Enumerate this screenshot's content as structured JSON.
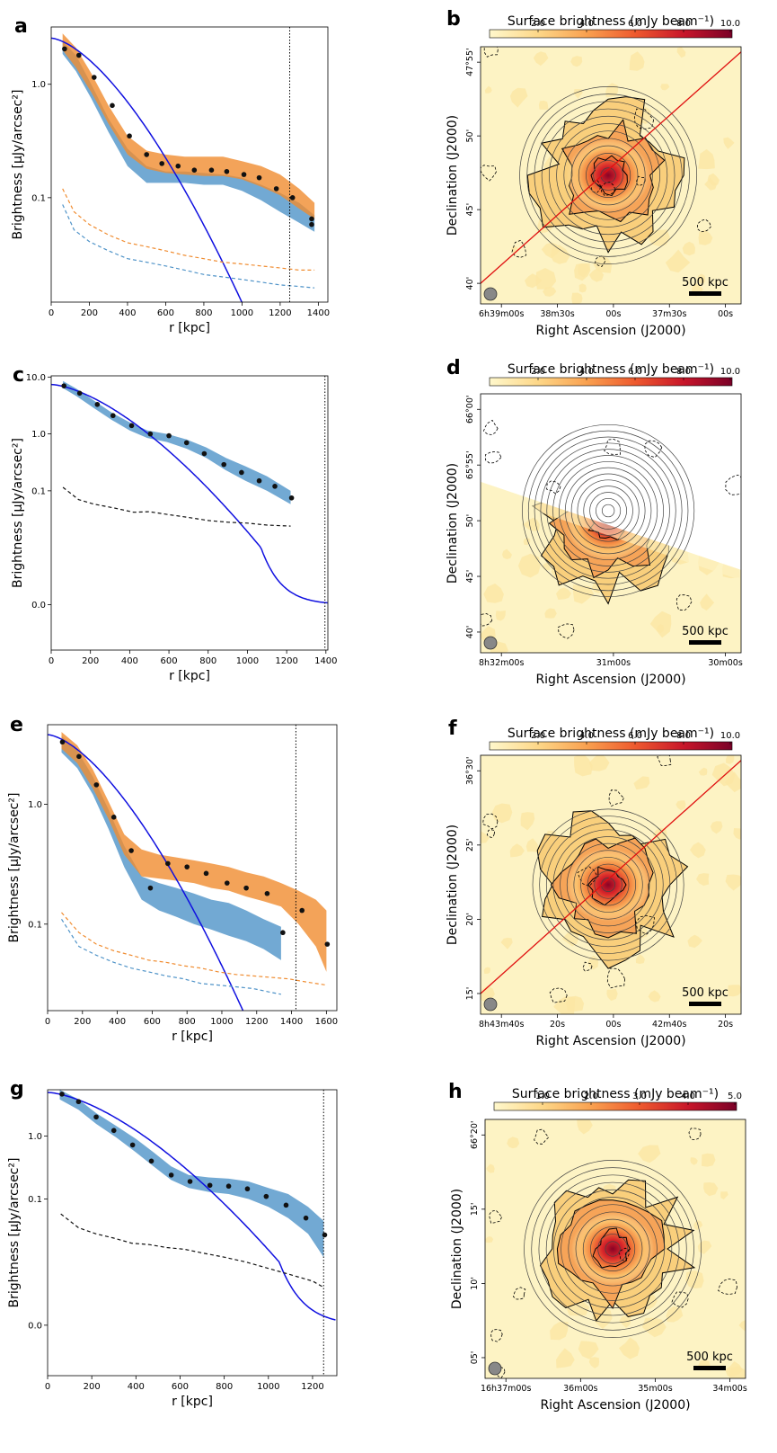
{
  "panel_letters": [
    "a",
    "b",
    "c",
    "d",
    "e",
    "f",
    "g",
    "h"
  ],
  "profile_common": {
    "xlabel": "r [kpc]",
    "ylabel": "Brightness [μJy/arcsec²]"
  },
  "map_common": {
    "xlabel": "Right Ascension (J2000)",
    "ylabel": "Declination (J2000)",
    "colorbar_label": "Surface brightness (mJy beam⁻¹)",
    "scalebar_label": "500 kpc"
  },
  "colors": {
    "series1_fill": "#4f93c8",
    "series2_fill": "#f08c30",
    "model_line": "#1010e0",
    "profile_points": "#111111",
    "cut_line": "#e01010"
  },
  "chart_data": [
    {
      "panel": "a",
      "type": "line",
      "yscale": "log",
      "xlim": [
        0,
        1450
      ],
      "ylim": [
        0.012,
        3.2
      ],
      "xticks": [
        0,
        200,
        400,
        600,
        800,
        1000,
        1200,
        1400
      ],
      "yticks": [
        {
          "v": 1.0,
          "t": "1.0"
        },
        {
          "v": 0.1,
          "t": "0.1"
        }
      ],
      "vline": 1250,
      "model": {
        "type": "beta",
        "I0": 2.55,
        "rc": 230
      },
      "series": [
        {
          "color_key": "series1_fill",
          "x": [
            60,
            130,
            210,
            300,
            400,
            500,
            600,
            700,
            800,
            900,
            1000,
            1100,
            1200,
            1300,
            1380
          ],
          "lo": [
            1.85,
            1.3,
            0.75,
            0.38,
            0.19,
            0.135,
            0.135,
            0.135,
            0.13,
            0.13,
            0.115,
            0.095,
            0.075,
            0.06,
            0.05
          ],
          "hi": [
            2.4,
            1.8,
            1.0,
            0.5,
            0.27,
            0.19,
            0.17,
            0.17,
            0.165,
            0.16,
            0.15,
            0.13,
            0.11,
            0.09,
            0.07
          ]
        },
        {
          "color_key": "series2_fill",
          "x": [
            60,
            130,
            210,
            300,
            400,
            500,
            600,
            700,
            800,
            900,
            1000,
            1100,
            1200,
            1300,
            1380
          ],
          "lo": [
            2.0,
            1.4,
            0.85,
            0.45,
            0.24,
            0.18,
            0.165,
            0.16,
            0.155,
            0.155,
            0.145,
            0.125,
            0.105,
            0.08,
            0.065
          ],
          "hi": [
            2.8,
            2.1,
            1.25,
            0.65,
            0.35,
            0.26,
            0.24,
            0.23,
            0.23,
            0.23,
            0.21,
            0.19,
            0.16,
            0.12,
            0.09
          ]
        }
      ],
      "points": {
        "x": [
          70,
          145,
          225,
          320,
          410,
          500,
          580,
          665,
          750,
          840,
          920,
          1010,
          1090,
          1180,
          1265,
          1365,
          1365
        ],
        "y": [
          2.05,
          1.8,
          1.15,
          0.65,
          0.35,
          0.24,
          0.2,
          0.19,
          0.175,
          0.175,
          0.17,
          0.16,
          0.15,
          0.12,
          0.1,
          0.065,
          0.058
        ]
      },
      "dashed": [
        {
          "color_key": "series2_fill",
          "x": [
            60,
            120,
            200,
            300,
            400,
            500,
            600,
            700,
            800,
            900,
            1000,
            1100,
            1200,
            1300,
            1380
          ],
          "y": [
            0.12,
            0.075,
            0.058,
            0.047,
            0.04,
            0.037,
            0.034,
            0.031,
            0.029,
            0.027,
            0.026,
            0.025,
            0.024,
            0.023,
            0.023
          ]
        },
        {
          "color_key": "series1_fill",
          "x": [
            60,
            120,
            200,
            300,
            400,
            500,
            600,
            700,
            800,
            900,
            1000,
            1100,
            1200,
            1300,
            1380
          ],
          "y": [
            0.087,
            0.052,
            0.041,
            0.034,
            0.029,
            0.027,
            0.025,
            0.023,
            0.021,
            0.02,
            0.019,
            0.018,
            0.017,
            0.0165,
            0.016
          ]
        }
      ]
    },
    {
      "panel": "c",
      "type": "line",
      "yscale": "symlog",
      "xlim": [
        0,
        1410
      ],
      "ylim": [
        -0.008,
        10.5
      ],
      "xticks": [
        0,
        200,
        400,
        600,
        800,
        1000,
        1200,
        1400
      ],
      "yticks": [
        {
          "v": 10,
          "t": "10.0"
        },
        {
          "v": 1,
          "t": "1.0"
        },
        {
          "v": 0.1,
          "t": "0.1"
        },
        {
          "v": 0,
          "t": "0.0"
        }
      ],
      "vline": 1395,
      "model": {
        "type": "beta",
        "I0": 7.4,
        "rc": 215
      },
      "series": [
        {
          "color_key": "series1_fill",
          "x": [
            60,
            130,
            220,
            310,
            400,
            490,
            590,
            690,
            790,
            890,
            990,
            1100,
            1220
          ],
          "lo": [
            6.4,
            4.6,
            2.8,
            1.75,
            1.15,
            0.85,
            0.72,
            0.55,
            0.38,
            0.23,
            0.15,
            0.1,
            0.058
          ],
          "hi": [
            8.5,
            6.2,
            3.8,
            2.35,
            1.6,
            1.15,
            1.0,
            0.8,
            0.58,
            0.38,
            0.27,
            0.18,
            0.1
          ]
        }
      ],
      "points": {
        "x": [
          65,
          145,
          235,
          315,
          410,
          505,
          600,
          690,
          780,
          880,
          970,
          1060,
          1140,
          1225
        ],
        "y": [
          7.0,
          5.2,
          3.3,
          2.1,
          1.4,
          1.0,
          0.93,
          0.7,
          0.45,
          0.29,
          0.21,
          0.15,
          0.12,
          0.075
        ]
      },
      "dashed": [
        {
          "color_key": "profile_points",
          "x": [
            60,
            140,
            220,
            320,
            420,
            500,
            600,
            700,
            800,
            900,
            1000,
            1100,
            1220
          ],
          "y": [
            0.115,
            0.07,
            0.058,
            0.05,
            0.042,
            0.043,
            0.038,
            0.034,
            0.03,
            0.028,
            0.027,
            0.025,
            0.024
          ]
        }
      ]
    },
    {
      "panel": "e",
      "type": "line",
      "yscale": "log",
      "xlim": [
        0,
        1660
      ],
      "ylim": [
        0.019,
        4.6
      ],
      "xticks": [
        0,
        200,
        400,
        600,
        800,
        1000,
        1200,
        1400,
        1600
      ],
      "yticks": [
        {
          "v": 1.0,
          "t": "1.0"
        },
        {
          "v": 0.1,
          "t": "0.1"
        }
      ],
      "vline": 1425,
      "model": {
        "type": "beta",
        "I0": 3.8,
        "rc": 260
      },
      "series": [
        {
          "color_key": "series1_fill",
          "x": [
            80,
            170,
            260,
            350,
            440,
            540,
            640,
            740,
            840,
            940,
            1040,
            1140,
            1240,
            1340
          ],
          "lo": [
            2.7,
            2.0,
            1.2,
            0.62,
            0.3,
            0.16,
            0.13,
            0.115,
            0.1,
            0.09,
            0.08,
            0.072,
            0.062,
            0.05
          ],
          "hi": [
            3.7,
            2.8,
            1.7,
            0.9,
            0.45,
            0.25,
            0.22,
            0.2,
            0.18,
            0.16,
            0.15,
            0.13,
            0.11,
            0.095
          ]
        },
        {
          "color_key": "series2_fill",
          "x": [
            80,
            170,
            260,
            350,
            440,
            540,
            640,
            740,
            840,
            940,
            1040,
            1140,
            1240,
            1340,
            1440,
            1540,
            1600
          ],
          "lo": [
            2.9,
            2.2,
            1.35,
            0.75,
            0.38,
            0.25,
            0.24,
            0.23,
            0.22,
            0.2,
            0.19,
            0.17,
            0.155,
            0.14,
            0.1,
            0.065,
            0.04
          ],
          "hi": [
            4.0,
            3.1,
            1.95,
            1.05,
            0.56,
            0.42,
            0.38,
            0.36,
            0.34,
            0.32,
            0.3,
            0.27,
            0.25,
            0.22,
            0.19,
            0.16,
            0.13
          ]
        }
      ],
      "points": {
        "x": [
          85,
          180,
          280,
          380,
          480,
          590,
          690,
          800,
          910,
          1030,
          1140,
          1260,
          1350,
          1460,
          1605
        ],
        "y": [
          3.3,
          2.5,
          1.45,
          0.78,
          0.41,
          0.2,
          0.32,
          0.3,
          0.265,
          0.22,
          0.2,
          0.18,
          0.085,
          0.13,
          0.068
        ]
      },
      "dashed": [
        {
          "color_key": "series2_fill",
          "x": [
            80,
            180,
            280,
            380,
            480,
            580,
            680,
            780,
            880,
            980,
            1080,
            1180,
            1280,
            1380,
            1480,
            1600
          ],
          "y": [
            0.125,
            0.085,
            0.068,
            0.06,
            0.055,
            0.05,
            0.048,
            0.045,
            0.043,
            0.04,
            0.038,
            0.037,
            0.036,
            0.035,
            0.033,
            0.031
          ]
        },
        {
          "color_key": "series1_fill",
          "x": [
            80,
            180,
            280,
            380,
            480,
            580,
            680,
            780,
            880,
            980,
            1080,
            1180,
            1280,
            1340
          ],
          "y": [
            0.11,
            0.065,
            0.055,
            0.048,
            0.043,
            0.04,
            0.037,
            0.035,
            0.032,
            0.031,
            0.03,
            0.029,
            0.027,
            0.026
          ]
        }
      ]
    },
    {
      "panel": "g",
      "type": "line",
      "yscale": "symlog",
      "xlim": [
        0,
        1310
      ],
      "ylim": [
        -0.008,
        5.4
      ],
      "xticks": [
        0,
        200,
        400,
        600,
        800,
        1000,
        1200
      ],
      "yticks": [
        {
          "v": 1,
          "t": "1.0"
        },
        {
          "v": 0.1,
          "t": "0.1"
        },
        {
          "v": 0,
          "t": "0.0"
        }
      ],
      "vline": 1250,
      "model": {
        "type": "beta",
        "I0": 4.9,
        "rc": 220
      },
      "series": [
        {
          "color_key": "series1_fill",
          "x": [
            55,
            140,
            220,
            310,
            400,
            480,
            560,
            640,
            730,
            820,
            910,
            1000,
            1090,
            1180,
            1250
          ],
          "lo": [
            3.8,
            2.6,
            1.55,
            0.95,
            0.55,
            0.33,
            0.2,
            0.15,
            0.13,
            0.12,
            0.1,
            0.075,
            0.05,
            0.028,
            0.012
          ],
          "hi": [
            5.4,
            3.8,
            2.3,
            1.45,
            0.9,
            0.55,
            0.33,
            0.24,
            0.22,
            0.21,
            0.19,
            0.15,
            0.12,
            0.075,
            0.045
          ]
        }
      ],
      "points": {
        "x": [
          65,
          140,
          220,
          300,
          385,
          470,
          560,
          645,
          735,
          820,
          905,
          990,
          1080,
          1170,
          1255
        ],
        "y": [
          4.6,
          3.5,
          2.0,
          1.22,
          0.72,
          0.4,
          0.24,
          0.19,
          0.165,
          0.16,
          0.145,
          0.11,
          0.08,
          0.05,
          0.027
        ]
      },
      "dashed": [
        {
          "color_key": "profile_points",
          "x": [
            60,
            140,
            220,
            300,
            380,
            460,
            540,
            620,
            700,
            800,
            900,
            1000,
            1100,
            1200,
            1250
          ],
          "y": [
            0.058,
            0.035,
            0.028,
            0.024,
            0.02,
            0.019,
            0.017,
            0.016,
            0.014,
            0.012,
            0.01,
            0.009,
            0.008,
            0.007,
            0.006
          ]
        }
      ]
    },
    {
      "panel": "b",
      "type": "heatmap",
      "colorbar_ticks": [
        "2.0",
        "4.0",
        "6.0",
        "8.0",
        "10.0"
      ],
      "ra_ticks": [
        "6h39m00s",
        "38m30s",
        "00s",
        "37m30s",
        "00s"
      ],
      "dec_ticks": [
        "47°55'",
        "50'",
        "45'",
        "40'"
      ],
      "cut": "diagonal-up",
      "rings": 12,
      "ring_outer": 0.34
    },
    {
      "panel": "d",
      "type": "heatmap",
      "colorbar_ticks": [
        "2.0",
        "4.0",
        "6.0",
        "8.0",
        "10.0"
      ],
      "ra_ticks": [
        "8h32m00s",
        "31m00s",
        "30m00s"
      ],
      "dec_ticks": [
        "66°00'",
        "65°55'",
        "50'",
        "45'",
        "40'"
      ],
      "cut": "masked-upper",
      "rings": 14,
      "ring_outer": 0.33
    },
    {
      "panel": "f",
      "type": "heatmap",
      "colorbar_ticks": [
        "2.0",
        "4.0",
        "6.0",
        "8.0",
        "10.0"
      ],
      "ra_ticks": [
        "8h43m40s",
        "20s",
        "00s",
        "42m40s",
        "20s"
      ],
      "dec_ticks": [
        "36°30'",
        "25'",
        "20'",
        "15'"
      ],
      "cut": "diagonal-up",
      "rings": 11,
      "ring_outer": 0.29
    },
    {
      "panel": "h",
      "type": "heatmap",
      "colorbar_ticks": [
        "1.0",
        "2.0",
        "3.0",
        "4.0",
        "5.0"
      ],
      "ra_ticks": [
        "16h37m00s",
        "36m00s",
        "35m00s",
        "34m00s"
      ],
      "dec_ticks": [
        "66°20'",
        "15'",
        "10'",
        "05'"
      ],
      "cut": "none",
      "rings": 12,
      "ring_outer": 0.34
    }
  ]
}
